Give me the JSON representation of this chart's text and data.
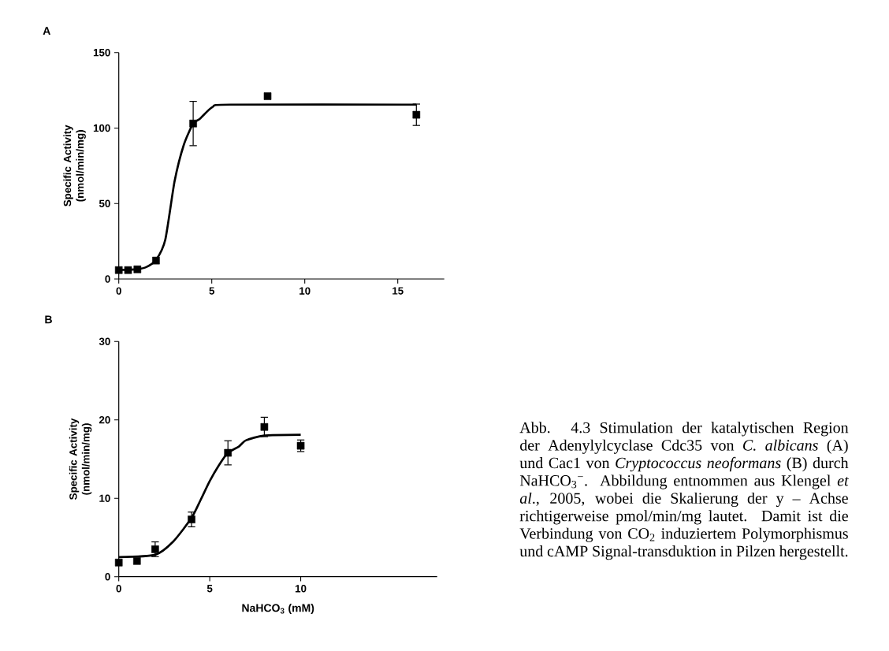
{
  "chart_data": [
    {
      "type": "scatter",
      "title": "A",
      "ylabel": "Specific Activity (nmol/min/mg)",
      "xlim": [
        0,
        17.5
      ],
      "xticks": [
        0,
        5,
        10,
        15
      ],
      "ylim": [
        0,
        150
      ],
      "yticks": [
        0,
        50,
        100,
        150
      ],
      "series": [
        {
          "marker": "square",
          "color": "#000000",
          "x": [
            0,
            0.5,
            1,
            2,
            4,
            8,
            16
          ],
          "values": [
            5.9,
            5.9,
            6.4,
            12.2,
            103,
            121.1,
            108.8
          ],
          "errors": [
            null,
            null,
            null,
            null,
            15,
            null,
            7.4
          ]
        },
        {
          "type": "line",
          "color": "#000000",
          "line_style": "solid",
          "x": [
            0,
            1,
            1.5,
            2,
            2.5,
            3,
            3.5,
            4,
            4.35,
            5.05,
            6,
            16
          ],
          "values": [
            6,
            6.5,
            8,
            12.5,
            26,
            64.7,
            89,
            103,
            106,
            114,
            115.5,
            115.5
          ]
        }
      ]
    },
    {
      "type": "scatter",
      "title": "B",
      "xlabel": "NaHCO$_{3}$ (mM)",
      "ylabel": "Specific Activity (nmol/min/mg)",
      "xlim": [
        0,
        17.5
      ],
      "xticks": [
        0,
        5,
        10
      ],
      "ylim": [
        0,
        30
      ],
      "yticks": [
        0,
        10,
        20,
        30
      ],
      "annotations": [
        "Abb. 4.3 Stimulation der katalytischen Region der Adenylylcyclase Cdc35 von *C. albicans* (A) und Cac1 von *Cryptococcus neoformans* (B) durch NaHCO$_{3}$$^{−}$. Abbildung entnommen aus Klengel *et al*., 2005, wobei die Skalierung der y – Achse richtigerweise pmol/min/mg lautet. Damit ist die Verbindung von CO$_{2}$ induziertem Polymorphismus und cAMP Signal-transduktion in Pilzen hergestellt."
      ],
      "series": [
        {
          "marker": "square",
          "color": "#000000",
          "x": [
            0,
            1,
            2,
            4,
            6,
            8,
            10
          ],
          "values": [
            1.8,
            2.0,
            3.5,
            7.3,
            15.8,
            19.1,
            16.7
          ],
          "errors": [
            null,
            null,
            1,
            1,
            1.6,
            1.3,
            0.8
          ]
        },
        {
          "type": "line",
          "color": "#000000",
          "line_style": "solid",
          "x": [
            0,
            2,
            3,
            4,
            4.5,
            5,
            5.5,
            6,
            6.6,
            7,
            8,
            10
          ],
          "values": [
            2.5,
            2.8,
            4.5,
            7.5,
            9.8,
            12.2,
            14.2,
            15.8,
            16.6,
            17.4,
            18,
            18.1
          ]
        }
      ]
    }
  ]
}
